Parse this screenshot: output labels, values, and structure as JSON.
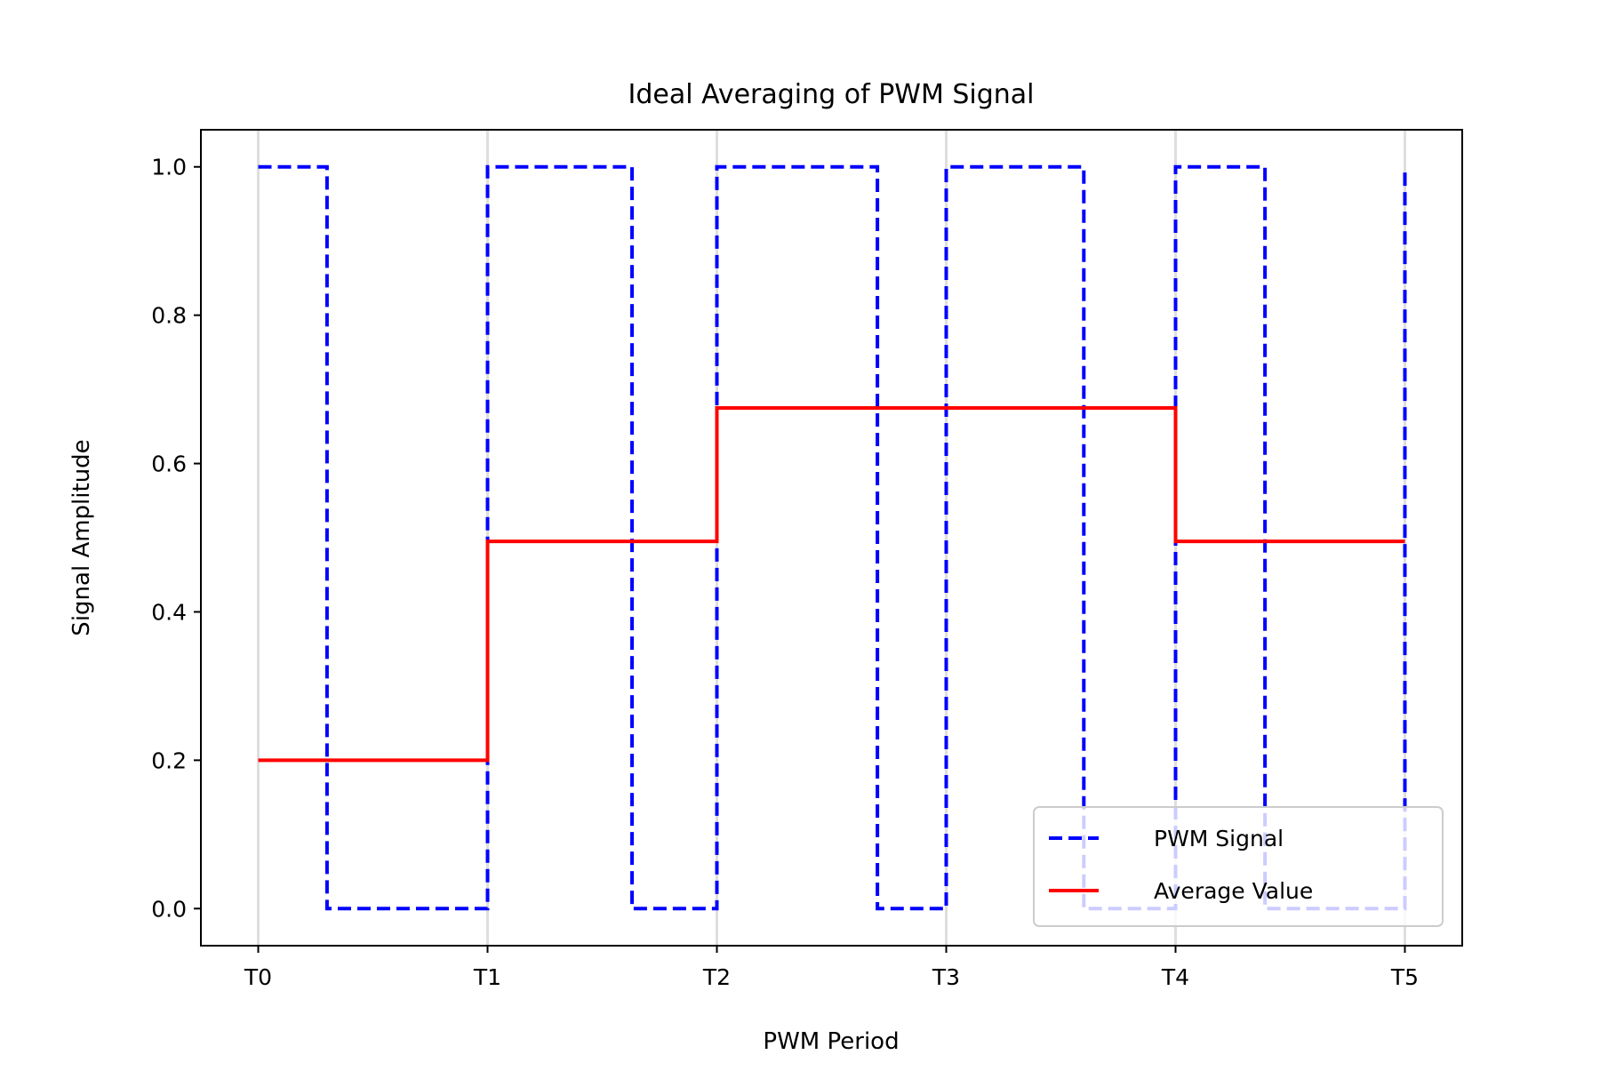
{
  "chart_data": {
    "type": "line",
    "title": "Ideal Averaging of PWM Signal",
    "xlabel": "PWM Period",
    "ylabel": "Signal Amplitude",
    "xlim": [
      -0.25,
      5.25
    ],
    "ylim": [
      -0.05,
      1.05
    ],
    "x_ticks": [
      {
        "value": 0,
        "label": "T0"
      },
      {
        "value": 1,
        "label": "T1"
      },
      {
        "value": 2,
        "label": "T2"
      },
      {
        "value": 3,
        "label": "T3"
      },
      {
        "value": 4,
        "label": "T4"
      },
      {
        "value": 5,
        "label": "T5"
      }
    ],
    "y_ticks": [
      {
        "value": 0.0,
        "label": "0.0"
      },
      {
        "value": 0.2,
        "label": "0.2"
      },
      {
        "value": 0.4,
        "label": "0.4"
      },
      {
        "value": 0.6,
        "label": "0.6"
      },
      {
        "value": 0.8,
        "label": "0.8"
      },
      {
        "value": 1.0,
        "label": "1.0"
      }
    ],
    "grid": "vertical lines at period boundaries",
    "legend_position": "lower right",
    "series": [
      {
        "name": "PWM Signal",
        "style": "dashed",
        "color": "#0000ff",
        "x": [
          0,
          0.3,
          0.3,
          1,
          1,
          1.63,
          1.63,
          2,
          2,
          2.7,
          2.7,
          3,
          3,
          3.6,
          3.6,
          4,
          4,
          4.39,
          4.39,
          5,
          5
        ],
        "y": [
          1,
          1,
          0,
          0,
          1,
          1,
          0,
          0,
          1,
          1,
          0,
          0,
          1,
          1,
          0,
          0,
          1,
          1,
          0,
          0,
          1
        ]
      },
      {
        "name": "Average Value",
        "style": "solid",
        "color": "#ff0000",
        "x": [
          0,
          1,
          1,
          2,
          2,
          4,
          4,
          5
        ],
        "y": [
          0.2,
          0.2,
          0.495,
          0.495,
          0.675,
          0.675,
          0.495,
          0.495
        ]
      }
    ]
  }
}
